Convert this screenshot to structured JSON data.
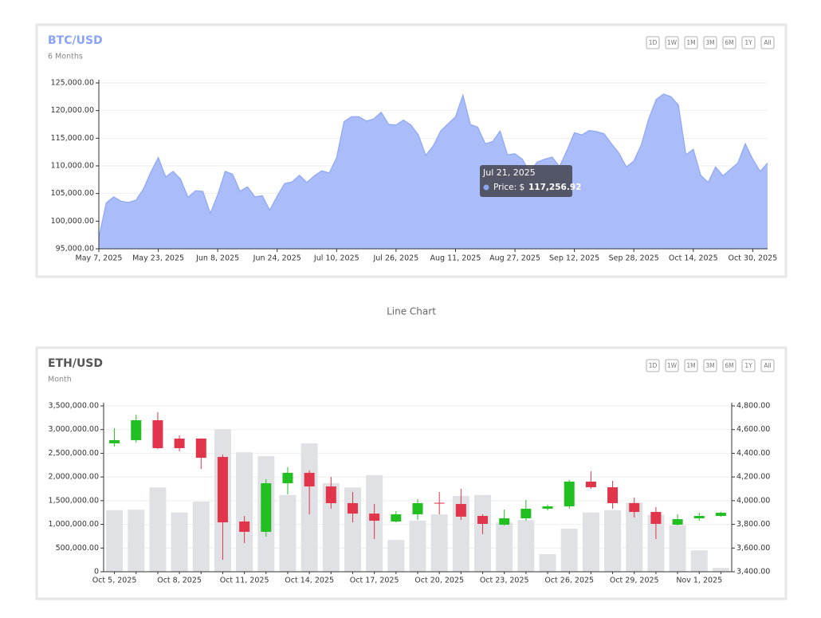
{
  "range_buttons": [
    "1D",
    "1W",
    "1M",
    "3M",
    "6M",
    "1Y",
    "All"
  ],
  "caption": "Line Chart",
  "chart_data": [
    {
      "type": "area",
      "title": "BTC/USD",
      "subtitle": "6 Months",
      "title_color": "#8aa4f5",
      "color": "#aabdfa",
      "line_color": "#8ea7f4",
      "grid": true,
      "x": [
        "May 7, 2025",
        "May 9, 2025",
        "May 11, 2025",
        "May 13, 2025",
        "May 15, 2025",
        "May 17, 2025",
        "May 19, 2025",
        "May 21, 2025",
        "May 23, 2025",
        "May 25, 2025",
        "May 27, 2025",
        "May 29, 2025",
        "May 31, 2025",
        "Jun 2, 2025",
        "Jun 4, 2025",
        "Jun 6, 2025",
        "Jun 8, 2025",
        "Jun 10, 2025",
        "Jun 12, 2025",
        "Jun 14, 2025",
        "Jun 16, 2025",
        "Jun 18, 2025",
        "Jun 20, 2025",
        "Jun 22, 2025",
        "Jun 24, 2025",
        "Jun 26, 2025",
        "Jun 28, 2025",
        "Jun 30, 2025",
        "Jul 2, 2025",
        "Jul 4, 2025",
        "Jul 6, 2025",
        "Jul 8, 2025",
        "Jul 10, 2025",
        "Jul 12, 2025",
        "Jul 14, 2025",
        "Jul 16, 2025",
        "Jul 18, 2025",
        "Jul 20, 2025",
        "Jul 22, 2025",
        "Jul 24, 2025",
        "Jul 26, 2025",
        "Jul 28, 2025",
        "Jul 30, 2025",
        "Aug 1, 2025",
        "Aug 3, 2025",
        "Aug 5, 2025",
        "Aug 7, 2025",
        "Aug 9, 2025",
        "Aug 11, 2025",
        "Aug 13, 2025",
        "Aug 15, 2025",
        "Aug 17, 2025",
        "Aug 19, 2025",
        "Aug 21, 2025",
        "Aug 23, 2025",
        "Aug 25, 2025",
        "Aug 27, 2025",
        "Aug 29, 2025",
        "Aug 31, 2025",
        "Sep 2, 2025",
        "Sep 4, 2025",
        "Sep 6, 2025",
        "Sep 8, 2025",
        "Sep 10, 2025",
        "Sep 12, 2025",
        "Sep 14, 2025",
        "Sep 16, 2025",
        "Sep 18, 2025",
        "Sep 20, 2025",
        "Sep 22, 2025",
        "Sep 24, 2025",
        "Sep 26, 2025",
        "Sep 28, 2025",
        "Sep 30, 2025",
        "Oct 2, 2025",
        "Oct 4, 2025",
        "Oct 6, 2025",
        "Oct 8, 2025",
        "Oct 10, 2025",
        "Oct 12, 2025",
        "Oct 14, 2025",
        "Oct 16, 2025",
        "Oct 18, 2025",
        "Oct 20, 2025",
        "Oct 22, 2025",
        "Oct 24, 2025",
        "Oct 26, 2025",
        "Oct 28, 2025",
        "Oct 30, 2025",
        "Nov 1, 2025",
        "Nov 3, 2025"
      ],
      "values": [
        97000,
        103300,
        104400,
        103600,
        103400,
        103800,
        105800,
        108900,
        111500,
        108000,
        109000,
        107600,
        104300,
        105500,
        105400,
        101400,
        104800,
        109000,
        108500,
        105400,
        106200,
        104400,
        104600,
        102000,
        104500,
        106800,
        107100,
        108300,
        107000,
        108200,
        109100,
        108700,
        111500,
        118000,
        118900,
        118900,
        118100,
        118500,
        119700,
        117500,
        117400,
        118300,
        117400,
        115600,
        111900,
        113600,
        116300,
        117600,
        118900,
        122800,
        117500,
        117000,
        114000,
        114400,
        116300,
        112000,
        112200,
        111200,
        108800,
        110700,
        111200,
        111600,
        109900,
        112800,
        116000,
        115600,
        116400,
        116200,
        115800,
        114000,
        112300,
        109800,
        110900,
        113800,
        118500,
        122000,
        123000,
        122500,
        121000,
        112000,
        113000,
        108300,
        107000,
        109800,
        108200,
        109400,
        110500,
        114000,
        111200,
        109000,
        110500
      ],
      "xticks": [
        "May 7, 2025",
        "May 23, 2025",
        "Jun 8, 2025",
        "Jun 24, 2025",
        "Jul 10, 2025",
        "Jul 26, 2025",
        "Aug 11, 2025",
        "Aug 27, 2025",
        "Sep 12, 2025",
        "Sep 28, 2025",
        "Oct 14, 2025",
        "Oct 30, 2025"
      ],
      "ylim": [
        95000,
        125000
      ],
      "yticks": [
        {
          "value": 95000,
          "label": "95,000.00"
        },
        {
          "value": 100000,
          "label": "100,000.00"
        },
        {
          "value": 105000,
          "label": "105,000.00"
        },
        {
          "value": 110000,
          "label": "110,000.00"
        },
        {
          "value": 115000,
          "label": "115,000.00"
        },
        {
          "value": 120000,
          "label": "120,000.00"
        },
        {
          "value": 125000,
          "label": "125,000.00"
        }
      ],
      "tooltip": {
        "title": "Jul 21, 2025",
        "label": "Price: $",
        "value": "117,256.92"
      }
    },
    {
      "type": "candlestick",
      "title": "ETH/USD",
      "subtitle": "Month",
      "title_color": "#555555",
      "grid": true,
      "categories": [
        "Oct 5, 2025",
        null,
        null,
        "Oct 8, 2025",
        null,
        null,
        "Oct 11, 2025",
        null,
        null,
        "Oct 14, 2025",
        null,
        null,
        "Oct 17, 2025",
        null,
        null,
        "Oct 20, 2025",
        null,
        null,
        "Oct 23, 2025",
        null,
        null,
        "Oct 26, 2025",
        null,
        null,
        "Oct 29, 2025",
        null,
        null,
        "Nov 1, 2025",
        null
      ],
      "up_color": "#22bf22",
      "down_color": "#e0354a",
      "open": [
        4484,
        4511,
        4679,
        4524,
        4524,
        4369,
        3824,
        3737,
        4147,
        4235,
        4120,
        3979,
        3891,
        3824,
        3885,
        3982,
        3972,
        3871,
        3797,
        3851,
        3932,
        3952,
        4161,
        4113,
        3979,
        3905,
        3797,
        3851,
        3871
      ],
      "high": [
        4612,
        4726,
        4746,
        4551,
        4524,
        4389,
        3871,
        4181,
        4282,
        4255,
        4201,
        4073,
        3972,
        3912,
        4013,
        4073,
        4100,
        3885,
        3925,
        4006,
        3966,
        4174,
        4248,
        4167,
        4026,
        3946,
        3885,
        3898,
        3905
      ],
      "low": [
        4457,
        4490,
        4437,
        4416,
        4268,
        3501,
        3642,
        3696,
        4053,
        3885,
        3932,
        3817,
        3676,
        3817,
        3838,
        3885,
        3838,
        3717,
        3790,
        3831,
        3918,
        3932,
        4100,
        3932,
        3858,
        3676,
        3790,
        3831,
        3864
      ],
      "close": [
        4511,
        4679,
        4443,
        4443,
        4362,
        3817,
        3737,
        4147,
        4235,
        4120,
        3979,
        3891,
        3831,
        3885,
        3979,
        3975,
        3865,
        3804,
        3851,
        3932,
        3952,
        4161,
        4113,
        3979,
        3905,
        3804,
        3844,
        3871,
        3898
      ],
      "volume": {
        "color": "#dfe1e4",
        "values": [
          1300000,
          1310000,
          1780000,
          1250000,
          1480000,
          3010000,
          2520000,
          2440000,
          1620000,
          2710000,
          1870000,
          1780000,
          2040000,
          670000,
          1080000,
          1210000,
          1600000,
          1620000,
          1040000,
          1090000,
          370000,
          910000,
          1250000,
          1300000,
          1460000,
          1200000,
          980000,
          450000,
          80000
        ]
      },
      "ylim": [
        0,
        3500000
      ],
      "yticks": [
        0,
        {
          "value": 500000,
          "label": "500,000.00"
        },
        {
          "value": 1000000,
          "label": "1,000,000.00"
        },
        {
          "value": 1500000,
          "label": "1,500,000.00"
        },
        {
          "value": 2000000,
          "label": "2,000,000.00"
        },
        {
          "value": 2500000,
          "label": "2,500,000.00"
        },
        {
          "value": 3000000,
          "label": "3,000,000.00"
        },
        {
          "value": 3500000,
          "label": "3,500,000.00"
        }
      ],
      "y2lim": [
        3400,
        4800
      ],
      "y2ticks": [
        {
          "value": 3400,
          "label": "3,400.00"
        },
        {
          "value": 3600,
          "label": "3,600.00"
        },
        {
          "value": 3800,
          "label": "3,800.00"
        },
        {
          "value": 4000,
          "label": "4,000.00"
        },
        {
          "value": 4200,
          "label": "4,200.00"
        },
        {
          "value": 4400,
          "label": "4,400.00"
        },
        {
          "value": 4600,
          "label": "4,600.00"
        },
        {
          "value": 4800,
          "label": "4,800.00"
        }
      ]
    }
  ]
}
